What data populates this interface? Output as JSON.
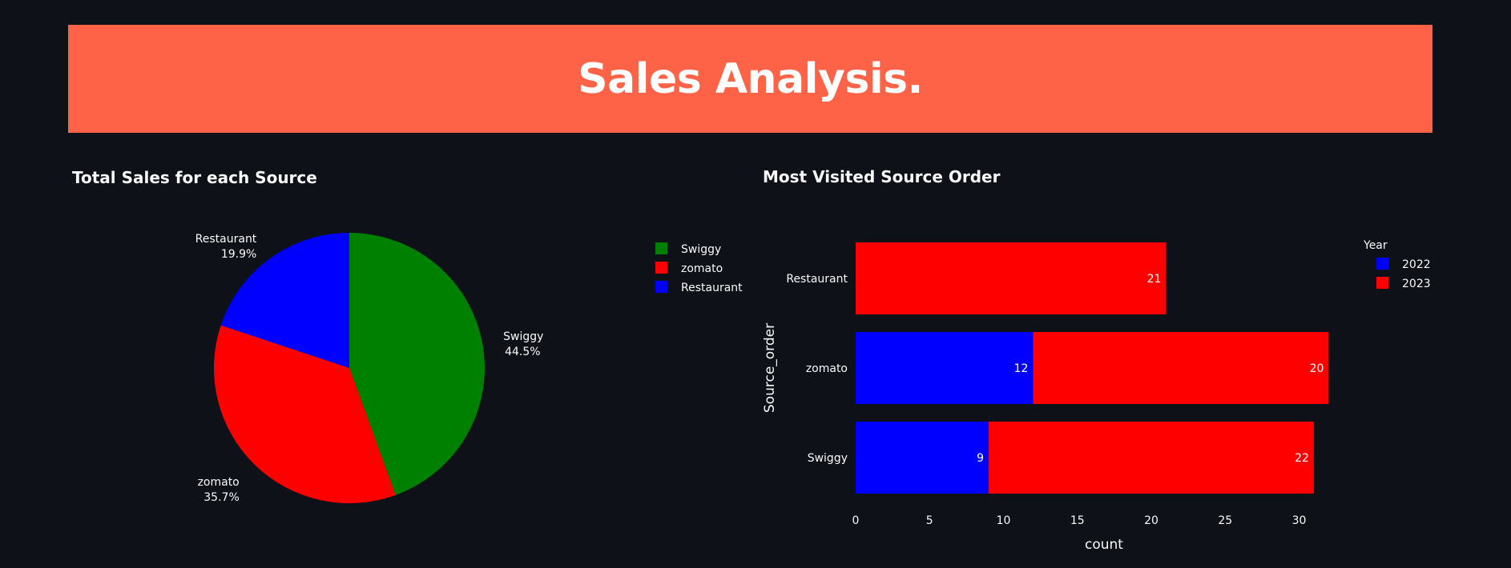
{
  "header": {
    "title": "Sales Analysis.",
    "background": "#ff6347"
  },
  "chart_data": [
    {
      "type": "pie",
      "title": "Total Sales for each Source",
      "labels": [
        "Swiggy",
        "zomato",
        "Restaurant"
      ],
      "values": [
        44.5,
        35.7,
        19.9
      ],
      "value_labels": [
        "44.5%",
        "35.7%",
        "19.9%"
      ],
      "colors": [
        "#008000",
        "#ff0000",
        "#0000ff"
      ],
      "legend_placement": "right"
    },
    {
      "type": "bar",
      "orientation": "horizontal",
      "stacked": true,
      "title": "Most Visited Source Order",
      "xlabel": "count",
      "ylabel": "Source_order",
      "categories": [
        "Restaurant",
        "zomato",
        "Swiggy"
      ],
      "series": [
        {
          "name": "2022",
          "color": "#0000ff",
          "values": [
            0,
            12,
            9
          ]
        },
        {
          "name": "2023",
          "color": "#ff0000",
          "values": [
            21,
            20,
            22
          ]
        }
      ],
      "data_labels": {
        "2022": [
          "",
          "12",
          "9"
        ],
        "2023": [
          "21",
          "20",
          "22"
        ]
      },
      "xlim": [
        0,
        32
      ],
      "xticks": [
        "0",
        "5",
        "10",
        "15",
        "20",
        "25",
        "30"
      ],
      "legend_title": "Year",
      "legend_placement": "top-right",
      "grid": false
    }
  ]
}
